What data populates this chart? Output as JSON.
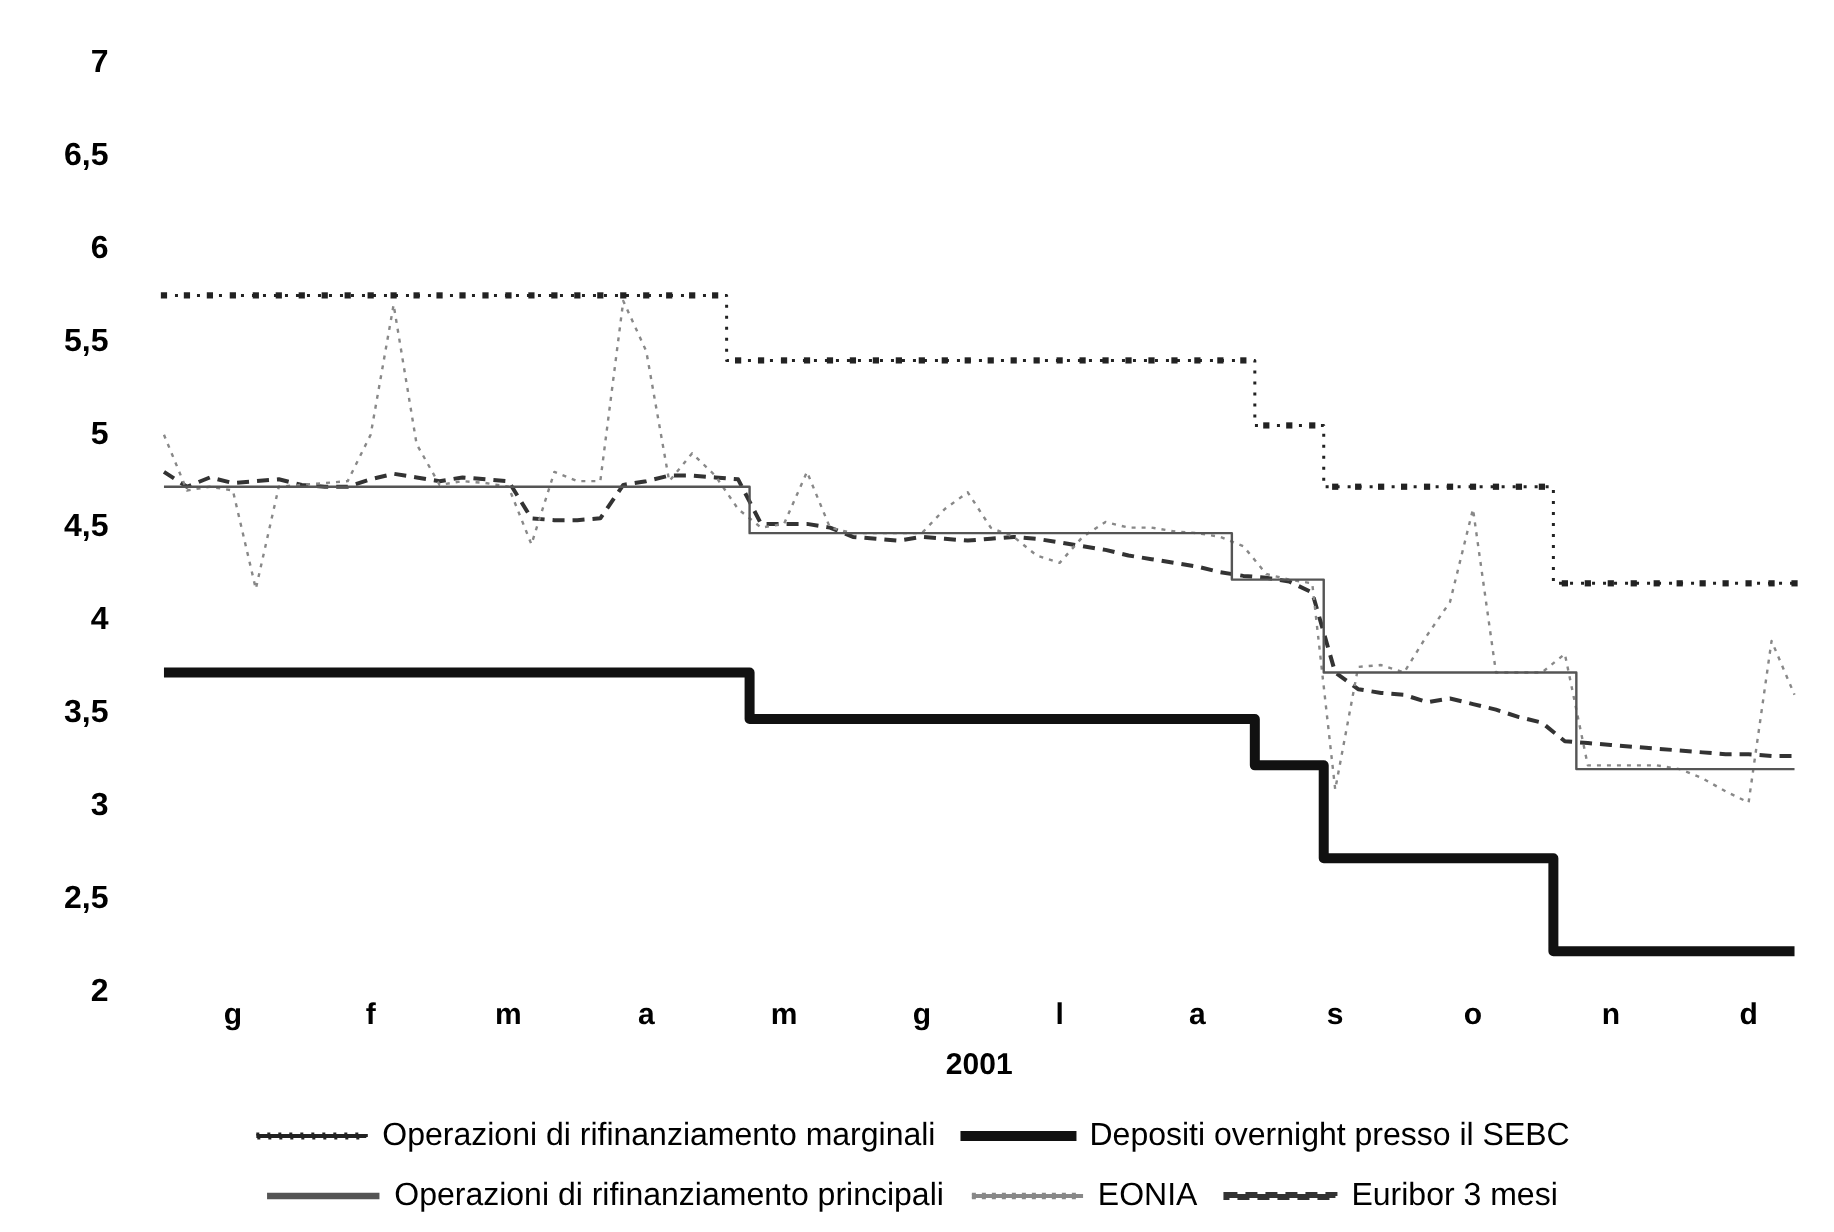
{
  "chart_data": {
    "type": "line",
    "xlabel": "2001",
    "categories": [
      null,
      null,
      null,
      "g",
      null,
      null,
      null,
      null,
      null,
      "f",
      null,
      null,
      null,
      null,
      null,
      "m",
      null,
      null,
      null,
      null,
      null,
      "a",
      null,
      null,
      null,
      null,
      null,
      "m",
      null,
      null,
      null,
      null,
      null,
      "g",
      null,
      null,
      null,
      null,
      null,
      "l",
      null,
      null,
      null,
      null,
      null,
      "a",
      null,
      null,
      null,
      null,
      null,
      "s",
      null,
      null,
      null,
      null,
      null,
      "o",
      null,
      null,
      null,
      null,
      null,
      "n",
      null,
      null,
      null,
      null,
      null,
      "d",
      null,
      null
    ],
    "ylim": [
      2,
      7
    ],
    "yticks": [
      {
        "value": 2,
        "label": "2"
      },
      {
        "value": 2.5,
        "label": "2,5"
      },
      {
        "value": 3,
        "label": "3"
      },
      {
        "value": 3.5,
        "label": "3,5"
      },
      {
        "value": 4,
        "label": "4"
      },
      {
        "value": 4.5,
        "label": "4,5"
      },
      {
        "value": 5,
        "label": "5"
      },
      {
        "value": 5.5,
        "label": "5,5"
      },
      {
        "value": 6,
        "label": "6"
      },
      {
        "value": 6.5,
        "label": "6,5"
      },
      {
        "value": 7,
        "label": "7"
      }
    ],
    "grid": false,
    "legend": "bottom",
    "series": [
      {
        "name": "Operazioni di rifinanziamento marginali",
        "type": "step",
        "line_style": "dotted",
        "marker": "square",
        "color": "#222222",
        "values": [
          5.75,
          5.75,
          5.75,
          5.75,
          5.75,
          5.75,
          5.75,
          5.75,
          5.75,
          5.75,
          5.75,
          5.75,
          5.75,
          5.75,
          5.75,
          5.75,
          5.75,
          5.75,
          5.75,
          5.75,
          5.75,
          5.75,
          5.75,
          5.75,
          5.75,
          5.4,
          5.4,
          5.4,
          5.4,
          5.4,
          5.4,
          5.4,
          5.4,
          5.4,
          5.4,
          5.4,
          5.4,
          5.4,
          5.4,
          5.4,
          5.4,
          5.4,
          5.4,
          5.4,
          5.4,
          5.4,
          5.4,
          5.4,
          5.05,
          5.05,
          5.05,
          4.72,
          4.72,
          4.72,
          4.72,
          4.72,
          4.72,
          4.72,
          4.72,
          4.72,
          4.72,
          4.2,
          4.2,
          4.2,
          4.2,
          4.2,
          4.2,
          4.2,
          4.2,
          4.2,
          4.2,
          4.2
        ]
      },
      {
        "name": "Depositi overnight presso il SEBC",
        "type": "step",
        "line_style": "solid",
        "color": "#111111",
        "values": [
          3.72,
          3.72,
          3.72,
          3.72,
          3.72,
          3.72,
          3.72,
          3.72,
          3.72,
          3.72,
          3.72,
          3.72,
          3.72,
          3.72,
          3.72,
          3.72,
          3.72,
          3.72,
          3.72,
          3.72,
          3.72,
          3.72,
          3.72,
          3.72,
          3.72,
          3.72,
          3.47,
          3.47,
          3.47,
          3.47,
          3.47,
          3.47,
          3.47,
          3.47,
          3.47,
          3.47,
          3.47,
          3.47,
          3.47,
          3.47,
          3.47,
          3.47,
          3.47,
          3.47,
          3.47,
          3.47,
          3.47,
          3.47,
          3.22,
          3.22,
          3.22,
          2.72,
          2.72,
          2.72,
          2.72,
          2.72,
          2.72,
          2.72,
          2.72,
          2.72,
          2.72,
          2.22,
          2.22,
          2.22,
          2.22,
          2.22,
          2.22,
          2.22,
          2.22,
          2.22,
          2.22,
          2.22
        ]
      },
      {
        "name": "Operazioni di rifinanziamento principali",
        "type": "step",
        "line_style": "solid",
        "color": "#555555",
        "values": [
          4.72,
          4.72,
          4.72,
          4.72,
          4.72,
          4.72,
          4.72,
          4.72,
          4.72,
          4.72,
          4.72,
          4.72,
          4.72,
          4.72,
          4.72,
          4.72,
          4.72,
          4.72,
          4.72,
          4.72,
          4.72,
          4.72,
          4.72,
          4.72,
          4.72,
          4.72,
          4.47,
          4.47,
          4.47,
          4.47,
          4.47,
          4.47,
          4.47,
          4.47,
          4.47,
          4.47,
          4.47,
          4.47,
          4.47,
          4.47,
          4.47,
          4.47,
          4.47,
          4.47,
          4.47,
          4.47,
          4.47,
          4.22,
          4.22,
          4.22,
          4.22,
          3.72,
          3.72,
          3.72,
          3.72,
          3.72,
          3.72,
          3.72,
          3.72,
          3.72,
          3.72,
          3.72,
          3.2,
          3.2,
          3.2,
          3.2,
          3.2,
          3.2,
          3.2,
          3.2,
          3.2,
          3.2
        ]
      },
      {
        "name": "EONIA",
        "type": "line",
        "line_style": "dotted",
        "color": "#888888",
        "values": [
          5.0,
          4.7,
          4.72,
          4.7,
          4.17,
          4.72,
          4.73,
          4.74,
          4.75,
          5.0,
          5.7,
          4.95,
          4.73,
          4.75,
          4.74,
          4.72,
          4.41,
          4.8,
          4.75,
          4.75,
          5.72,
          5.45,
          4.75,
          4.9,
          4.78,
          4.6,
          4.5,
          4.52,
          4.8,
          4.5,
          4.47,
          4.47,
          4.47,
          4.47,
          4.6,
          4.69,
          4.5,
          4.45,
          4.35,
          4.31,
          4.45,
          4.53,
          4.5,
          4.5,
          4.48,
          4.47,
          4.45,
          4.4,
          4.25,
          4.22,
          4.2,
          3.09,
          3.75,
          3.76,
          3.72,
          3.92,
          4.1,
          4.6,
          3.72,
          3.72,
          3.72,
          3.82,
          3.22,
          3.22,
          3.22,
          3.22,
          3.2,
          3.15,
          3.08,
          3.02,
          3.89,
          3.6
        ]
      },
      {
        "name": "Euribor 3 mesi",
        "type": "line",
        "line_style": "dashed",
        "color": "#333333",
        "values": [
          4.8,
          4.72,
          4.77,
          4.74,
          4.75,
          4.76,
          4.73,
          4.72,
          4.72,
          4.76,
          4.79,
          4.77,
          4.75,
          4.77,
          4.76,
          4.75,
          4.55,
          4.54,
          4.54,
          4.55,
          4.73,
          4.75,
          4.78,
          4.78,
          4.77,
          4.76,
          4.52,
          4.52,
          4.52,
          4.5,
          4.45,
          4.44,
          4.43,
          4.45,
          4.44,
          4.43,
          4.44,
          4.45,
          4.44,
          4.42,
          4.4,
          4.38,
          4.35,
          4.33,
          4.31,
          4.29,
          4.26,
          4.24,
          4.23,
          4.21,
          4.15,
          3.72,
          3.63,
          3.61,
          3.6,
          3.56,
          3.58,
          3.55,
          3.52,
          3.48,
          3.45,
          3.35,
          3.34,
          3.33,
          3.32,
          3.31,
          3.3,
          3.29,
          3.28,
          3.28,
          3.27,
          3.27
        ]
      }
    ]
  }
}
